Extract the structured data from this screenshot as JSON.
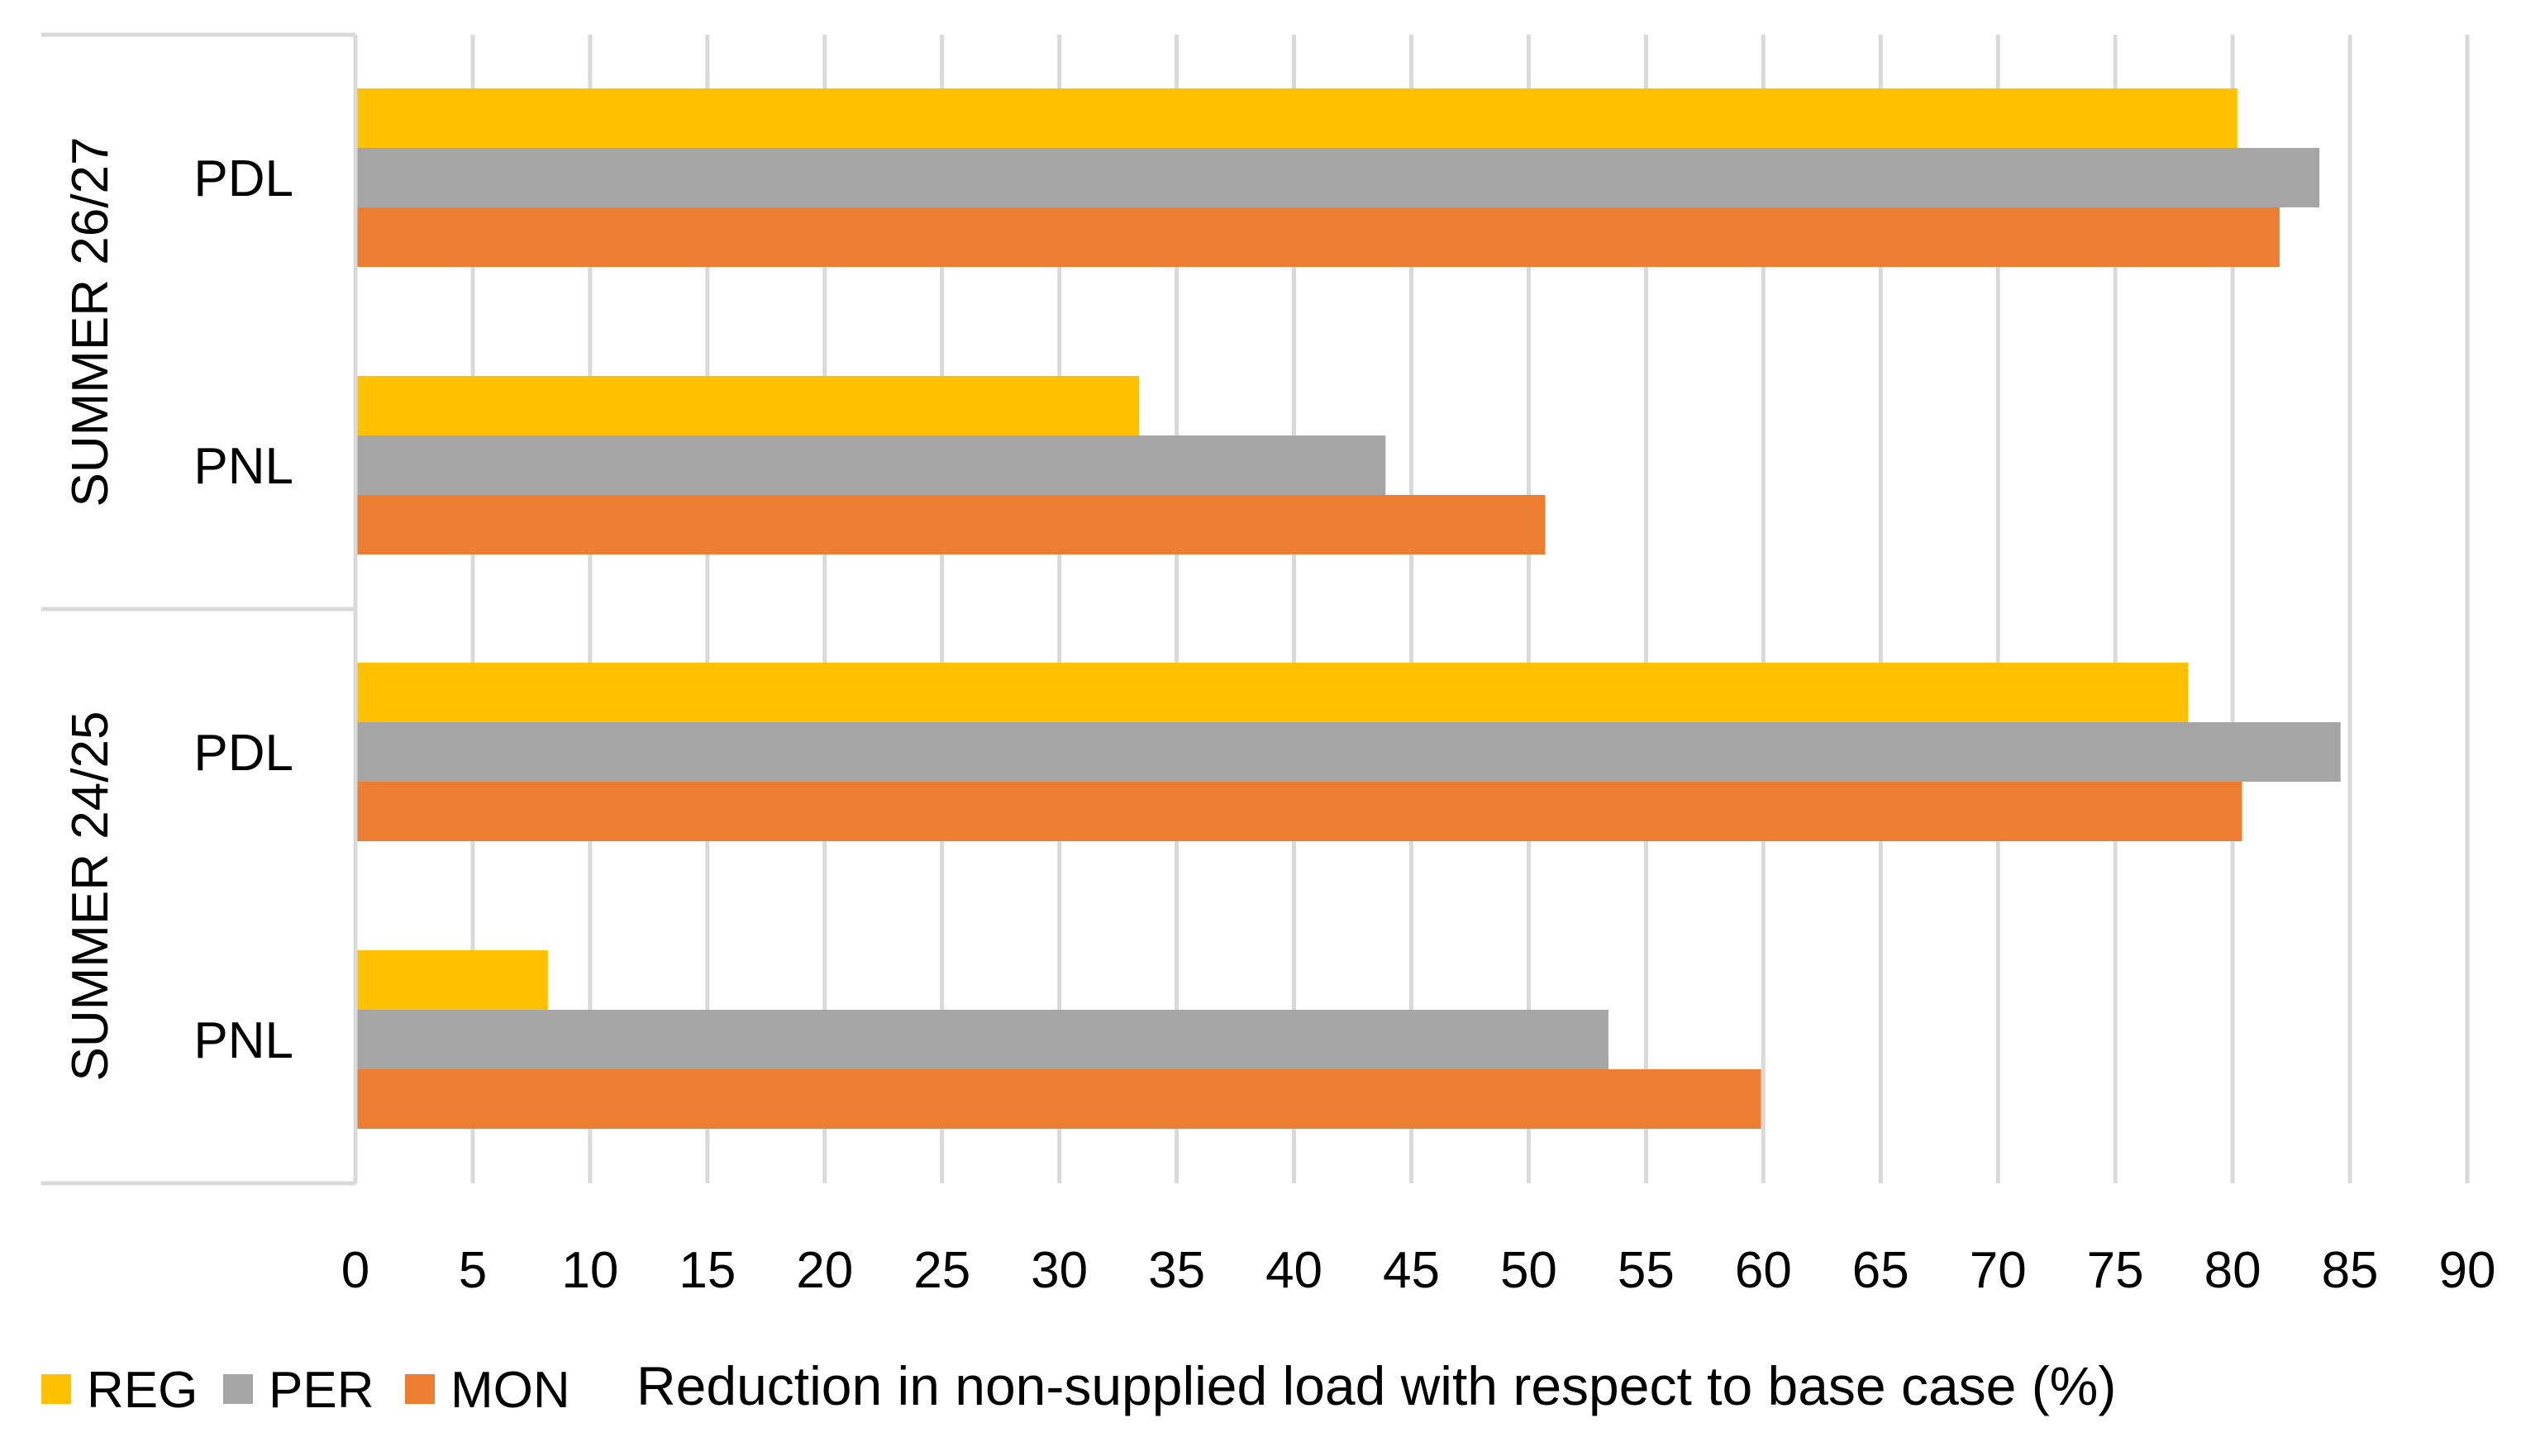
{
  "chart_data": {
    "type": "bar",
    "orientation": "horizontal",
    "title": "",
    "xlabel": "Reduction in non-supplied load with respect to base case (%)",
    "ylabel": "",
    "xlim": [
      0,
      90
    ],
    "x_ticks": [
      0,
      5,
      10,
      15,
      20,
      25,
      30,
      35,
      40,
      45,
      50,
      55,
      60,
      65,
      70,
      75,
      80,
      85,
      90
    ],
    "grid": true,
    "legend_position": "bottom-left",
    "groups": [
      {
        "label": "SUMMER 26/27",
        "categories": [
          "PDL",
          "PNL"
        ]
      },
      {
        "label": "SUMMER 24/25",
        "categories": [
          "PDL",
          "PNL"
        ]
      }
    ],
    "series": [
      {
        "name": "REG",
        "color": "#FFC000",
        "values": [
          80.2,
          33.4,
          78.1,
          8.2
        ]
      },
      {
        "name": "PER",
        "color": "#A5A5A5",
        "values": [
          83.7,
          43.9,
          84.6,
          53.4
        ]
      },
      {
        "name": "MON",
        "color": "#ED7D31",
        "values": [
          82.0,
          50.7,
          80.4,
          59.9
        ]
      }
    ]
  }
}
